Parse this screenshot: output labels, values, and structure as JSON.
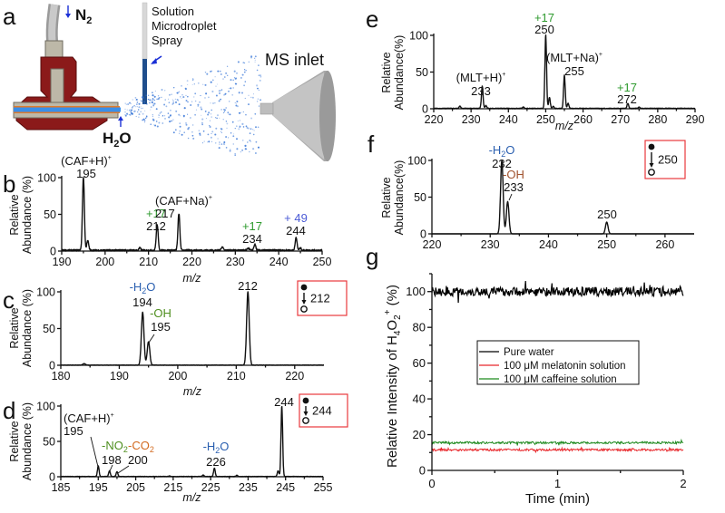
{
  "figure": {
    "panel_a": {
      "letter": "a",
      "labels": {
        "gas": "N",
        "gas_sub": "2",
        "water": "H",
        "water_sub": "2",
        "water_tail": "O",
        "spray_line1": "Solution",
        "spray_line2": "Microdroplet",
        "spray_line3": "Spray",
        "inlet": "MS inlet"
      },
      "colors": {
        "fitting": "#8b1a1a",
        "tube": "#3b8ee8",
        "droplets": "#3a78d8",
        "arrow": "#1a2fd6",
        "inlet": "#a8a8a8"
      }
    },
    "colors": {
      "green": "#2e9a2e",
      "blue": "#2a5fb0",
      "orange": "#d2691e",
      "brown": "#a0522d",
      "purple": "#4b5bd6",
      "red_box": "#e8383d",
      "olive": "#4f8f1f"
    }
  },
  "chart_data": [
    {
      "id": "b",
      "letter": "b",
      "type": "line",
      "title": "",
      "xlabel": "m/z",
      "ylabel_line1": "Relative",
      "ylabel_line2": "Abundance (%)",
      "xlim": [
        190,
        250
      ],
      "ylim": [
        0,
        100
      ],
      "xticks": [
        190,
        200,
        210,
        220,
        230,
        240,
        250
      ],
      "yticks": [
        0,
        50,
        100
      ],
      "peaks": [
        {
          "mz": 195,
          "value": 100
        },
        {
          "mz": 196,
          "value": 13
        },
        {
          "mz": 208,
          "value": 3
        },
        {
          "mz": 212,
          "value": 35
        },
        {
          "mz": 217,
          "value": 50
        },
        {
          "mz": 227,
          "value": 5
        },
        {
          "mz": 233,
          "value": 3
        },
        {
          "mz": 234.5,
          "value": 8
        },
        {
          "mz": 244,
          "value": 17
        },
        {
          "mz": 245,
          "value": 3
        }
      ],
      "annotations": [
        {
          "mz": 195,
          "lines": [
            {
              "text": "(CAF+H)",
              "sup": "+",
              "color": "#111"
            },
            {
              "text": "195",
              "color": "#111"
            }
          ]
        },
        {
          "mz": 212,
          "lines": [
            {
              "text": "+17",
              "color": "#2e9a2e"
            },
            {
              "text": "212",
              "color": "#111"
            }
          ]
        },
        {
          "mz": 217,
          "lines": [
            {
              "text": "(CAF+Na)",
              "sup": "+",
              "color": "#111"
            },
            {
              "text": "217",
              "color": "#111"
            }
          ]
        },
        {
          "mz": 234,
          "lines": [
            {
              "text": "+17",
              "color": "#2e9a2e"
            },
            {
              "text": "234",
              "color": "#111"
            }
          ]
        },
        {
          "mz": 244,
          "lines": [
            {
              "text": "+ 49",
              "color": "#4b5bd6"
            },
            {
              "text": "244",
              "color": "#111"
            }
          ]
        }
      ]
    },
    {
      "id": "c",
      "letter": "c",
      "type": "line",
      "xlabel": "m/z",
      "ylabel_line1": "Relative",
      "ylabel_line2": "Abundance (%)",
      "xlim": [
        180,
        225
      ],
      "ylim": [
        0,
        100
      ],
      "xticks": [
        180,
        190,
        200,
        210,
        220
      ],
      "yticks": [
        0,
        50,
        100
      ],
      "peaks": [
        {
          "mz": 184,
          "value": 2
        },
        {
          "mz": 194,
          "value": 72
        },
        {
          "mz": 195,
          "value": 32
        },
        {
          "mz": 212,
          "value": 100
        }
      ],
      "annotations": [
        {
          "id": "c194",
          "lines": [
            {
              "text": "-H",
              "sub": "2",
              "tail": "O",
              "color": "#2a5fb0"
            },
            {
              "text": "194",
              "color": "#111"
            }
          ]
        },
        {
          "id": "c195",
          "lines": [
            {
              "text": "-OH",
              "color": "#4f8f1f"
            },
            {
              "text": "195",
              "color": "#111"
            }
          ]
        },
        {
          "id": "c212",
          "lines": [
            {
              "text": "212",
              "color": "#111"
            }
          ]
        }
      ],
      "msms_box": {
        "precursor": "212"
      }
    },
    {
      "id": "d",
      "letter": "d",
      "type": "line",
      "xlabel": "m/z",
      "ylabel_line1": "Relative",
      "ylabel_line2": "Abundance (%)",
      "xlim": [
        185,
        255
      ],
      "ylim": [
        0,
        100
      ],
      "xticks": [
        185,
        195,
        205,
        215,
        225,
        235,
        245,
        255
      ],
      "yticks": [
        0,
        50,
        100
      ],
      "peaks": [
        {
          "mz": 195,
          "value": 15
        },
        {
          "mz": 198,
          "value": 8
        },
        {
          "mz": 200,
          "value": 7
        },
        {
          "mz": 214,
          "value": 1
        },
        {
          "mz": 223,
          "value": 2
        },
        {
          "mz": 226,
          "value": 12
        },
        {
          "mz": 232,
          "value": 2
        },
        {
          "mz": 243,
          "value": 8
        },
        {
          "mz": 244,
          "value": 100
        }
      ],
      "annotations": [
        {
          "id": "d195",
          "lines": [
            {
              "text": "(CAF+H)",
              "sup": "+",
              "color": "#111"
            },
            {
              "text": "195",
              "color": "#111"
            }
          ]
        },
        {
          "id": "d198",
          "lines": [
            {
              "text": "-NO",
              "sub": "2",
              "color": "#4f8f1f"
            },
            {
              "text": "198",
              "color": "#111"
            }
          ]
        },
        {
          "id": "d200",
          "lines": [
            {
              "text": "-CO",
              "sub": "2",
              "color": "#d2691e"
            },
            {
              "text": "200",
              "color": "#111"
            }
          ]
        },
        {
          "id": "d226",
          "lines": [
            {
              "text": "-H",
              "sub": "2",
              "tail": "O",
              "color": "#2a5fb0"
            },
            {
              "text": "226",
              "color": "#111"
            }
          ]
        },
        {
          "id": "d244",
          "lines": [
            {
              "text": "244",
              "color": "#111"
            }
          ]
        }
      ],
      "msms_box": {
        "precursor": "244"
      }
    },
    {
      "id": "e",
      "letter": "e",
      "type": "line",
      "xlabel": "m/z",
      "ylabel_line1": "Relative",
      "ylabel_line2": "Abundance(%)",
      "xlim": [
        220,
        290
      ],
      "ylim": [
        0,
        100
      ],
      "xticks": [
        220,
        230,
        240,
        250,
        260,
        270,
        280,
        290
      ],
      "yticks": [
        0,
        50,
        100
      ],
      "peaks": [
        {
          "mz": 227,
          "value": 3
        },
        {
          "mz": 233,
          "value": 30
        },
        {
          "mz": 234,
          "value": 4
        },
        {
          "mz": 244,
          "value": 2
        },
        {
          "mz": 250,
          "value": 100
        },
        {
          "mz": 251,
          "value": 15
        },
        {
          "mz": 252,
          "value": 3
        },
        {
          "mz": 255,
          "value": 45
        },
        {
          "mz": 256,
          "value": 7
        },
        {
          "mz": 272,
          "value": 7
        },
        {
          "mz": 275,
          "value": 2
        }
      ],
      "annotations": [
        {
          "id": "e233",
          "lines": [
            {
              "text": "(MLT+H)",
              "sup": "+",
              "color": "#111"
            },
            {
              "text": "233",
              "color": "#111"
            }
          ]
        },
        {
          "id": "e250",
          "lines": [
            {
              "text": "+17",
              "color": "#2e9a2e"
            },
            {
              "text": "250",
              "color": "#111"
            }
          ]
        },
        {
          "id": "e255",
          "lines": [
            {
              "text": "(MLT+Na)",
              "sup": "+",
              "color": "#111"
            },
            {
              "text": "255",
              "color": "#111"
            }
          ]
        },
        {
          "id": "e272",
          "lines": [
            {
              "text": "+17",
              "color": "#2e9a2e"
            },
            {
              "text": "272",
              "color": "#111"
            }
          ]
        }
      ]
    },
    {
      "id": "f",
      "letter": "f",
      "type": "line",
      "xlabel": "",
      "ylabel_line1": "Relative",
      "ylabel_line2": "Abundance(%)",
      "xlim": [
        220,
        265
      ],
      "ylim": [
        0,
        100
      ],
      "xticks": [
        220,
        230,
        240,
        250,
        260
      ],
      "yticks": [
        0,
        50,
        100
      ],
      "peaks": [
        {
          "mz": 232,
          "value": 100
        },
        {
          "mz": 233,
          "value": 44
        },
        {
          "mz": 250,
          "value": 16
        }
      ],
      "annotations": [
        {
          "id": "f232",
          "lines": [
            {
              "text": "-H",
              "sub": "2",
              "tail": "O",
              "color": "#2a5fb0"
            },
            {
              "text": "232",
              "color": "#111"
            }
          ]
        },
        {
          "id": "f233",
          "lines": [
            {
              "text": "-OH",
              "color": "#a0522d"
            },
            {
              "text": "233",
              "color": "#111"
            }
          ]
        },
        {
          "id": "f250",
          "lines": [
            {
              "text": "250",
              "color": "#111"
            }
          ]
        }
      ],
      "msms_box": {
        "precursor": "250"
      }
    },
    {
      "id": "g",
      "letter": "g",
      "type": "line",
      "xlabel": "Time (min)",
      "ylabel": "Relative Intensity  of H4O2+ (%)",
      "ylabel_parts": {
        "a": "Relative Intensity  of H",
        "sub1": "4",
        "b": "O",
        "sub2": "2",
        "sup": "+",
        "c": " (%)"
      },
      "xlim": [
        0,
        2
      ],
      "ylim": [
        0,
        110
      ],
      "xticks": [
        0,
        1,
        2
      ],
      "yticks": [
        0,
        20,
        40,
        60,
        80,
        100
      ],
      "series": [
        {
          "name": "Pure water",
          "color": "#000000",
          "mean": 100,
          "noise": 2.5
        },
        {
          "name": "100 μM melatonin solution",
          "color": "#e8262a",
          "mean": 11.5,
          "noise": 0.6
        },
        {
          "name": "100 μM caffeine solution",
          "color": "#1f8a1f",
          "mean": 15.5,
          "noise": 0.6
        }
      ],
      "legend_position": "center"
    }
  ]
}
